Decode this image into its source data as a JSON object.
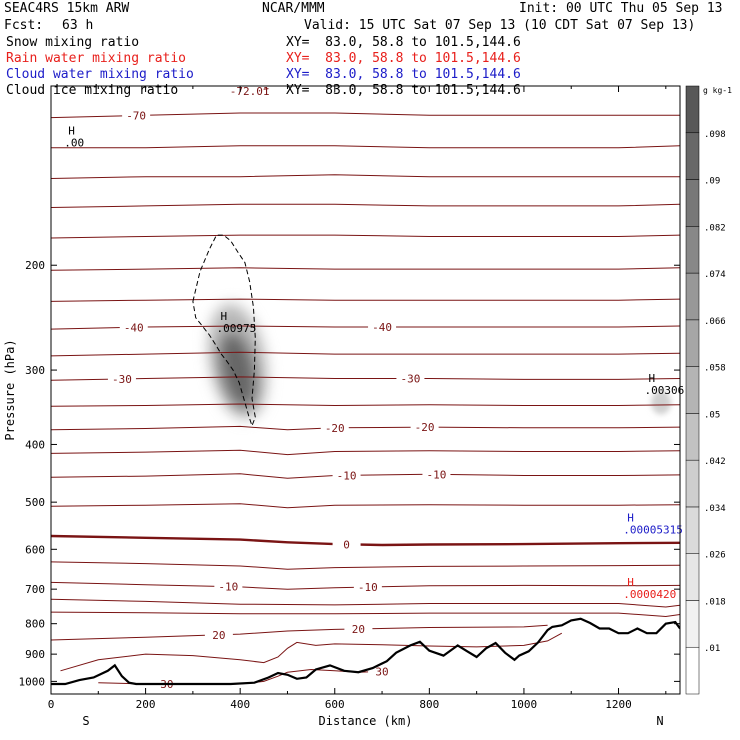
{
  "header": {
    "model": "SEAC4RS 15km ARW",
    "org": "NCAR/MMM",
    "init": "Init: 00 UTC Thu 05 Sep 13",
    "fcst_label": "Fcst:",
    "fcst_value": "63 h",
    "valid": "Valid: 15 UTC Sat 07 Sep 13 (10 CDT Sat 07 Sep 13)"
  },
  "fields": [
    {
      "name": "Snow mixing ratio",
      "color": "#000000",
      "xy": "XY=  83.0, 58.8 to 101.5,144.6"
    },
    {
      "name": "Rain water mixing ratio",
      "color": "#e8201c",
      "xy": "XY=  83.0, 58.8 to 101.5,144.6"
    },
    {
      "name": "Cloud water mixing ratio",
      "color": "#1c1cc8",
      "xy": "XY=  83.0, 58.8 to 101.5,144.6"
    },
    {
      "name": "Cloud ice mixing ratio",
      "color": "#000000",
      "xy": "XY=  83.0, 58.8 to 101.5,144.6"
    }
  ],
  "chart_data": {
    "type": "heatmap",
    "xlabel": "Distance (km)",
    "ylabel": "Pressure (hPa)",
    "x_ticks": [
      0,
      200,
      400,
      600,
      800,
      1000,
      1200
    ],
    "y_ticks": [
      200,
      300,
      400,
      500,
      600,
      700,
      800,
      900,
      1000
    ],
    "xlim": [
      0,
      1330
    ],
    "ylim": [
      1050,
      100
    ],
    "y_scale": "log",
    "endpoints": {
      "left": "S",
      "right": "N"
    },
    "colorbar": {
      "unit": "g kg-1",
      "ticks": [
        ".01",
        ".018",
        ".026",
        ".034",
        ".042",
        ".05",
        ".058",
        ".066",
        ".074",
        ".082",
        ".09",
        ".098"
      ],
      "colors": [
        "#ffffff",
        "#f2f2f2",
        "#e6e6e6",
        "#dadada",
        "#cecece",
        "#c2c2c2",
        "#b4b4b4",
        "#a6a6a6",
        "#989898",
        "#888888",
        "#787878",
        "#686868",
        "#585858"
      ]
    },
    "maxima": [
      {
        "label": "H",
        "value": ".00",
        "x": 28,
        "p": 122,
        "color": "#000000"
      },
      {
        "label": "H",
        "value": ".00975",
        "x": 350,
        "p": 250,
        "color": "#000000"
      },
      {
        "label": "H",
        "value": ".00306",
        "x": 1255,
        "p": 318,
        "color": "#000000"
      },
      {
        "label": "H",
        "value": ".00005315",
        "x": 1210,
        "p": 545,
        "color": "#1c1cc8"
      },
      {
        "label": "H",
        "value": ".0000420",
        "x": 1210,
        "p": 700,
        "color": "#e8201c"
      }
    ],
    "snow_region": {
      "x": [
        300,
        315,
        335,
        350,
        365,
        380,
        395,
        410,
        420,
        428,
        432,
        430,
        425,
        432,
        425,
        418,
        410,
        398,
        385,
        372,
        360,
        348,
        335,
        320,
        306,
        300
      ],
      "p": [
        230,
        205,
        188,
        178,
        178,
        182,
        190,
        198,
        213,
        235,
        265,
        300,
        335,
        360,
        372,
        358,
        340,
        315,
        300,
        290,
        282,
        272,
        262,
        253,
        245,
        230
      ]
    },
    "temperature_contours": [
      {
        "level": "-70",
        "x": [
          0,
          200,
          400,
          600,
          800,
          1000,
          1200,
          1330
        ],
        "p": [
          113,
          112,
          111,
          111,
          112,
          112,
          112,
          112
        ]
      },
      {
        "level": "-72.01",
        "x": [
          400,
          420,
          460
        ],
        "p": [
          101,
          102,
          101
        ]
      },
      {
        "level": "",
        "x": [
          0,
          200,
          400,
          600,
          800,
          1000,
          1200,
          1330
        ],
        "p": [
          127,
          127,
          126,
          126,
          127,
          127,
          127,
          126
        ]
      },
      {
        "level": "",
        "x": [
          0,
          200,
          400,
          600,
          800,
          1000,
          1200,
          1330
        ],
        "p": [
          143,
          142,
          142,
          141,
          142,
          142,
          142,
          142
        ]
      },
      {
        "level": "",
        "x": [
          0,
          200,
          400,
          600,
          800,
          1000,
          1200,
          1330
        ],
        "p": [
          160,
          159,
          158,
          158,
          159,
          159,
          159,
          158
        ]
      },
      {
        "level": "",
        "x": [
          0,
          200,
          400,
          600,
          800,
          1000,
          1200,
          1330
        ],
        "p": [
          180,
          179,
          178,
          178,
          179,
          179,
          179,
          178
        ]
      },
      {
        "level": "",
        "x": [
          0,
          200,
          400,
          600,
          800,
          1000,
          1200,
          1330
        ],
        "p": [
          204,
          203,
          202,
          203,
          203,
          203,
          203,
          202
        ]
      },
      {
        "level": "",
        "x": [
          0,
          200,
          400,
          600,
          800,
          1000,
          1200,
          1330
        ],
        "p": [
          230,
          229,
          228,
          229,
          229,
          229,
          229,
          228
        ]
      },
      {
        "level": "-40",
        "x": [
          0,
          200,
          400,
          600,
          800,
          1000,
          1200,
          1330
        ],
        "p": [
          256,
          254,
          253,
          254,
          254,
          254,
          254,
          253
        ]
      },
      {
        "level": "",
        "x": [
          0,
          200,
          400,
          600,
          800,
          1000,
          1200,
          1330
        ],
        "p": [
          284,
          282,
          280,
          282,
          282,
          282,
          282,
          281
        ]
      },
      {
        "level": "-30",
        "x": [
          0,
          200,
          400,
          600,
          800,
          1000,
          1200,
          1330
        ],
        "p": [
          312,
          310,
          308,
          310,
          310,
          311,
          311,
          310
        ]
      },
      {
        "level": "",
        "x": [
          0,
          200,
          400,
          600,
          800,
          1000,
          1200,
          1330
        ],
        "p": [
          345,
          344,
          342,
          344,
          343,
          344,
          344,
          343
        ]
      },
      {
        "level": "-20",
        "x": [
          0,
          200,
          400,
          500,
          600,
          800,
          1000,
          1200,
          1330
        ],
        "p": [
          378,
          376,
          373,
          378,
          375,
          374,
          375,
          375,
          374
        ]
      },
      {
        "level": "",
        "x": [
          0,
          200,
          400,
          500,
          600,
          800,
          1000,
          1200,
          1330
        ],
        "p": [
          414,
          412,
          409,
          416,
          411,
          410,
          411,
          411,
          410
        ]
      },
      {
        "level": "-10",
        "x": [
          0,
          200,
          400,
          500,
          600,
          800,
          1000,
          1200,
          1330
        ],
        "p": [
          454,
          452,
          448,
          456,
          451,
          449,
          451,
          451,
          450
        ]
      },
      {
        "level": "",
        "x": [
          0,
          200,
          400,
          500,
          600,
          800,
          1000,
          1200,
          1330
        ],
        "p": [
          508,
          506,
          503,
          511,
          506,
          505,
          506,
          506,
          505
        ]
      },
      {
        "level": "0",
        "x": [
          0,
          200,
          400,
          500,
          600,
          700,
          800,
          1000,
          1200,
          1330
        ],
        "p": [
          570,
          574,
          578,
          584,
          588,
          590,
          589,
          588,
          586,
          585
        ]
      },
      {
        "level": "",
        "x": [
          0,
          200,
          400,
          500,
          600,
          800,
          1000,
          1200,
          1330
        ],
        "p": [
          630,
          634,
          640,
          648,
          644,
          641,
          640,
          639,
          638
        ]
      },
      {
        "level": "-10",
        "x": [
          0,
          200,
          400,
          500,
          600,
          800,
          1000,
          1200,
          1330
        ],
        "p": [
          682,
          688,
          694,
          700,
          696,
          691,
          690,
          691,
          690
        ]
      },
      {
        "level": "",
        "x": [
          0,
          200,
          400,
          600,
          800,
          1000,
          1200,
          1300,
          1330
        ],
        "p": [
          728,
          734,
          742,
          744,
          740,
          740,
          740,
          750,
          745
        ]
      },
      {
        "level": "",
        "x": [
          0,
          200,
          400,
          600,
          800,
          1000,
          1200,
          1300,
          1330
        ],
        "p": [
          765,
          767,
          770,
          770,
          768,
          768,
          768,
          778,
          772
        ]
      },
      {
        "level": "20",
        "x": [
          0,
          200,
          400,
          500,
          600,
          800,
          1000,
          1050
        ],
        "p": [
          852,
          843,
          833,
          823,
          818,
          812,
          810,
          805
        ]
      },
      {
        "level": "",
        "x": [
          20,
          100,
          200,
          300,
          400,
          450,
          480,
          500,
          520,
          560,
          600,
          700,
          800,
          900,
          1000,
          1050,
          1080
        ],
        "p": [
          960,
          920,
          900,
          905,
          920,
          930,
          910,
          880,
          860,
          870,
          865,
          868,
          872,
          875,
          870,
          855,
          830
        ]
      },
      {
        "level": "30",
        "x": [
          100,
          200,
          300,
          400,
          450,
          480,
          500,
          550,
          600,
          650,
          700
        ],
        "p": [
          1005,
          1010,
          1012,
          1010,
          1000,
          980,
          965,
          955,
          960,
          965,
          962
        ]
      }
    ],
    "terrain": {
      "x": [
        0,
        30,
        60,
        90,
        120,
        135,
        150,
        165,
        180,
        210,
        250,
        300,
        380,
        430,
        460,
        480,
        500,
        520,
        540,
        560,
        590,
        620,
        650,
        680,
        710,
        730,
        760,
        780,
        800,
        830,
        860,
        880,
        900,
        920,
        940,
        960,
        980,
        990,
        1010,
        1030,
        1050,
        1060,
        1080,
        1100,
        1120,
        1140,
        1160,
        1180,
        1200,
        1220,
        1240,
        1260,
        1280,
        1300,
        1320,
        1330
      ],
      "p": [
        1010,
        1010,
        995,
        985,
        960,
        940,
        980,
        1005,
        1010,
        1010,
        1010,
        1010,
        1010,
        1005,
        985,
        968,
        975,
        990,
        985,
        955,
        940,
        960,
        965,
        950,
        925,
        895,
        870,
        858,
        888,
        905,
        870,
        890,
        910,
        880,
        862,
        895,
        920,
        905,
        890,
        860,
        820,
        810,
        805,
        790,
        785,
        798,
        815,
        815,
        830,
        830,
        815,
        830,
        830,
        800,
        795,
        815
      ]
    }
  }
}
